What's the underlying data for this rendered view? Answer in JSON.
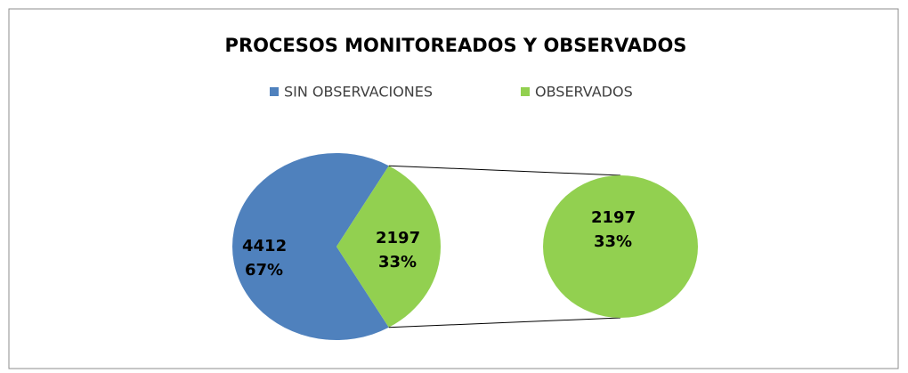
{
  "chart_data": {
    "type": "pie-of-pie",
    "title": "PROCESOS MONITOREADOS Y OBSERVADOS",
    "categories": [
      "SIN OBSERVACIONES",
      "OBSERVADOS"
    ],
    "values": [
      4412,
      2197
    ],
    "percentages": [
      67,
      33
    ],
    "percentage_labels": [
      "67%",
      "33%"
    ],
    "colors": [
      "#4f81bd",
      "#92d050"
    ],
    "legend": "top"
  }
}
